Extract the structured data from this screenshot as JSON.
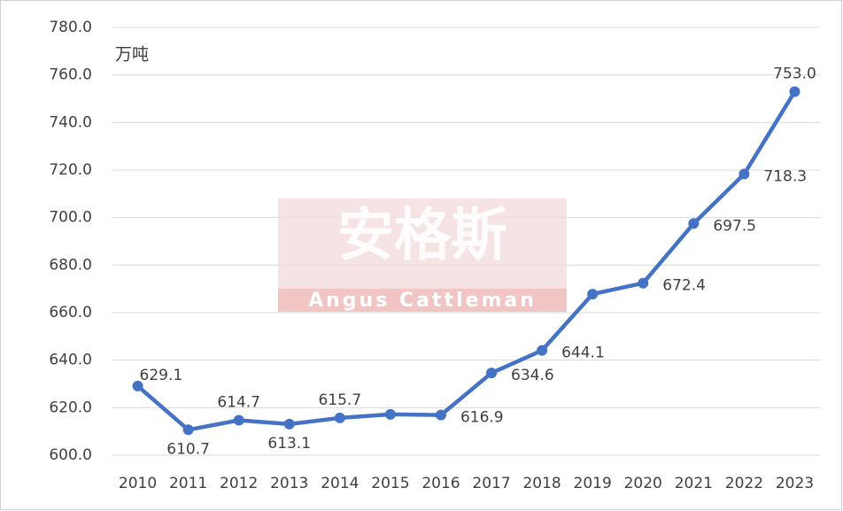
{
  "chart_data": {
    "type": "line",
    "unit_label": "万吨",
    "watermark": {
      "title": "安格斯",
      "subtitle": "Angus Cattleman"
    },
    "categories": [
      "2010",
      "2011",
      "2012",
      "2013",
      "2014",
      "2015",
      "2016",
      "2017",
      "2018",
      "2019",
      "2020",
      "2021",
      "2022",
      "2023"
    ],
    "series": [
      {
        "color": "#4472c4",
        "values": [
          629.1,
          610.7,
          614.7,
          613.1,
          615.7,
          617.2,
          616.9,
          634.6,
          644.1,
          667.8,
          672.4,
          697.5,
          718.3,
          753.0
        ],
        "value_labels": [
          "629.1",
          "610.7",
          "614.7",
          "613.1",
          "615.7",
          null,
          "616.9",
          "634.6",
          "644.1",
          null,
          "672.4",
          "697.5",
          "718.3",
          "753.0"
        ]
      }
    ],
    "ylim": [
      600,
      780
    ],
    "yticks": [
      {
        "value": 600,
        "label": "600.0"
      },
      {
        "value": 620,
        "label": "620.0"
      },
      {
        "value": 640,
        "label": "640.0"
      },
      {
        "value": 660,
        "label": "660.0"
      },
      {
        "value": 680,
        "label": "680.0"
      },
      {
        "value": 700,
        "label": "700.0"
      },
      {
        "value": 720,
        "label": "720.0"
      },
      {
        "value": 740,
        "label": "740.0"
      },
      {
        "value": 760,
        "label": "760.0"
      },
      {
        "value": 780,
        "label": "780.0"
      }
    ],
    "grid": true
  }
}
